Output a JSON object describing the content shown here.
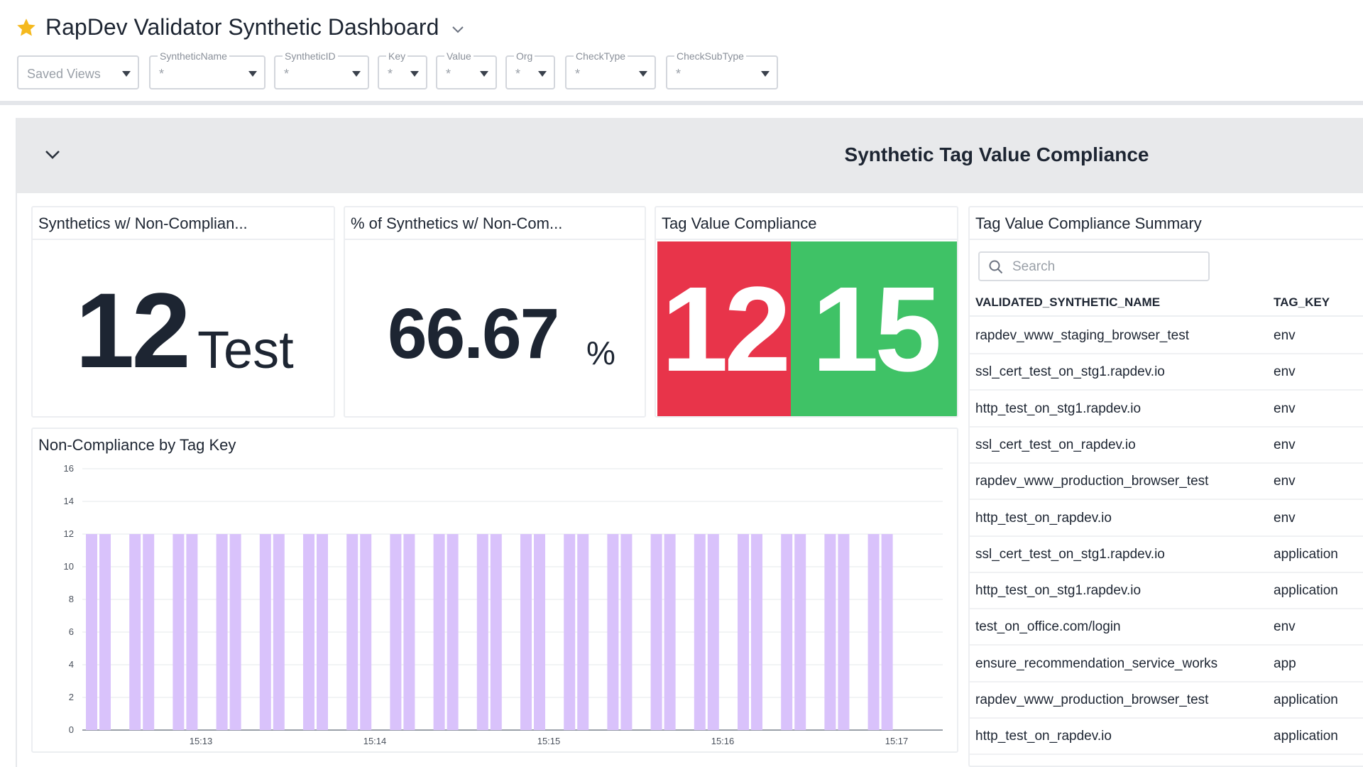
{
  "header": {
    "title": "RapDev Validator Synthetic Dashboard",
    "variables": [
      {
        "label": "",
        "value": "Saved Views"
      },
      {
        "label": "SyntheticName",
        "value": "*"
      },
      {
        "label": "SyntheticID",
        "value": "*"
      },
      {
        "label": "Key",
        "value": "*"
      },
      {
        "label": "Value",
        "value": "*"
      },
      {
        "label": "Org",
        "value": "*"
      },
      {
        "label": "CheckType",
        "value": "*"
      },
      {
        "label": "CheckSubType",
        "value": "*"
      }
    ]
  },
  "group": {
    "title": "Synthetic Tag Value Compliance"
  },
  "widgets": {
    "noncompliant_count": {
      "title": "Synthetics w/ Non-Complian...",
      "value": "12",
      "unit": "Test"
    },
    "noncompliant_pct": {
      "title": "% of Synthetics w/ Non-Com...",
      "value": "66.67",
      "unit": "%"
    },
    "tag_compliance": {
      "title": "Tag Value Compliance",
      "tiles": [
        {
          "value": "12",
          "color": "#e8344a"
        },
        {
          "value": "15",
          "color": "#3fc266"
        }
      ]
    },
    "summary_table": {
      "title": "Tag Value Compliance Summary",
      "search_placeholder": "Search",
      "columns": [
        "VALIDATED_SYNTHETIC_NAME",
        "TAG_KEY"
      ],
      "rows": [
        [
          "rapdev_www_staging_browser_test",
          "env"
        ],
        [
          "ssl_cert_test_on_stg1.rapdev.io",
          "env"
        ],
        [
          "http_test_on_stg1.rapdev.io",
          "env"
        ],
        [
          "ssl_cert_test_on_rapdev.io",
          "env"
        ],
        [
          "rapdev_www_production_browser_test",
          "env"
        ],
        [
          "http_test_on_rapdev.io",
          "env"
        ],
        [
          "ssl_cert_test_on_stg1.rapdev.io",
          "application"
        ],
        [
          "http_test_on_stg1.rapdev.io",
          "application"
        ],
        [
          "test_on_office.com/login",
          "env"
        ],
        [
          "ensure_recommendation_service_works",
          "app"
        ],
        [
          "rapdev_www_production_browser_test",
          "application"
        ],
        [
          "http_test_on_rapdev.io",
          "application"
        ]
      ]
    },
    "bar_chart": {
      "title": "Non-Compliance by Tag Key"
    }
  },
  "chart_data": {
    "type": "bar",
    "title": "Non-Compliance by Tag Key",
    "xlabel": "",
    "ylabel": "",
    "ylim": [
      0,
      16
    ],
    "yticks": [
      0,
      2,
      4,
      6,
      8,
      10,
      12,
      14,
      16
    ],
    "xticks": [
      "15:13",
      "15:14",
      "15:15",
      "15:16",
      "15:17"
    ],
    "bar_color": "#d9c2fb",
    "values": [
      12,
      12,
      12,
      12,
      12,
      12,
      12,
      12,
      12,
      12,
      12,
      12,
      12,
      12,
      12,
      12,
      12,
      12,
      12,
      12,
      12,
      12,
      12,
      12,
      12,
      12,
      12,
      12,
      12,
      12,
      12,
      12,
      12,
      12,
      12,
      12,
      12,
      12
    ]
  }
}
